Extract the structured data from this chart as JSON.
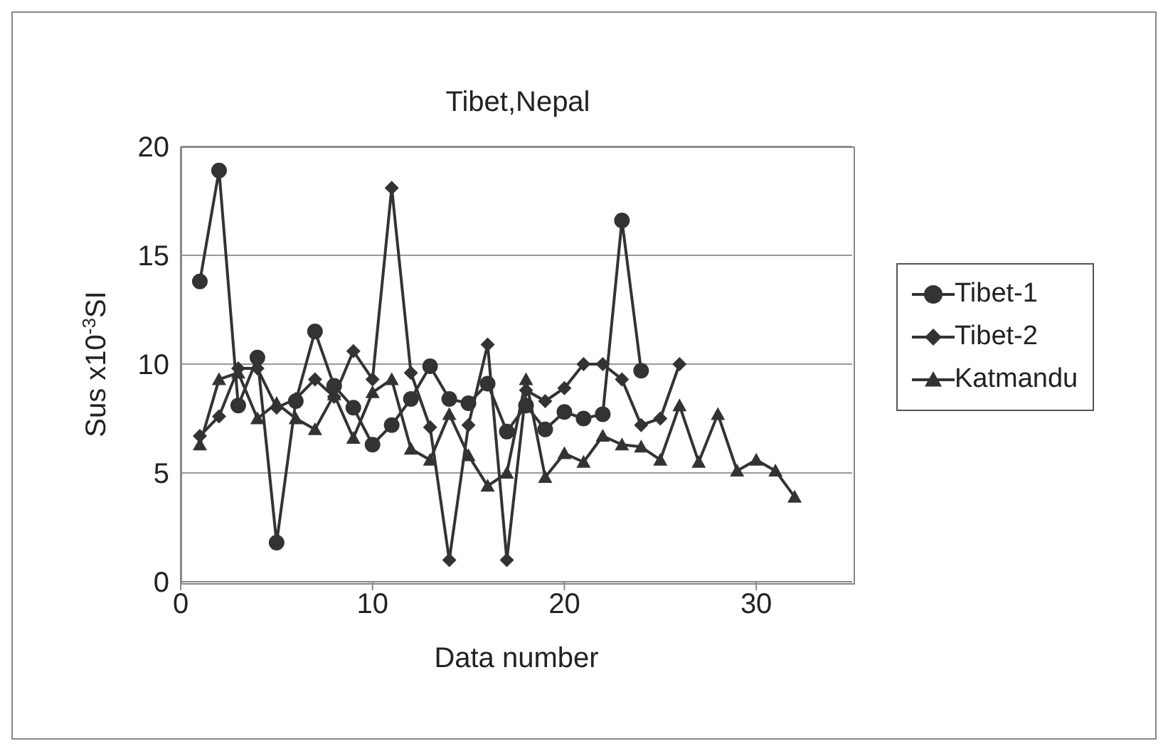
{
  "chart_data": {
    "type": "line",
    "title": "Tibet,Nepal",
    "xlabel": "Data number",
    "ylabel": "Sus x10$^{-3}$SI",
    "xlim": [
      0,
      35
    ],
    "xticks": [
      0,
      10,
      20,
      30
    ],
    "ylim": [
      0,
      20
    ],
    "yticks": [
      0,
      5,
      10,
      15,
      20
    ],
    "grid": "y",
    "legend": "right",
    "line_style": "solid",
    "series": [
      {
        "name": "Tibet-1",
        "color": "#333333",
        "marker": "circle",
        "x": [
          1,
          2,
          3,
          4,
          5,
          6,
          7,
          8,
          9,
          10,
          11,
          12,
          13,
          14,
          15,
          16,
          17,
          18,
          19,
          20,
          21,
          22,
          23,
          24
        ],
        "values": [
          13.8,
          18.9,
          8.1,
          10.3,
          1.8,
          8.3,
          11.5,
          9.0,
          8.0,
          6.3,
          7.2,
          8.4,
          9.9,
          8.4,
          8.2,
          9.1,
          6.9,
          8.1,
          7.0,
          7.8,
          7.5,
          7.7,
          16.6,
          9.7
        ]
      },
      {
        "name": "Tibet-2",
        "color": "#333333",
        "marker": "diamond",
        "x": [
          1,
          2,
          3,
          4,
          5,
          6,
          7,
          8,
          9,
          10,
          11,
          12,
          13,
          14,
          15,
          16,
          17,
          18,
          19,
          20,
          21,
          22,
          23,
          24,
          25,
          26
        ],
        "values": [
          6.7,
          7.6,
          9.8,
          9.8,
          8.0,
          8.4,
          9.3,
          8.5,
          10.6,
          9.3,
          18.1,
          9.6,
          7.1,
          1.0,
          7.2,
          10.9,
          1.0,
          8.8,
          8.3,
          8.9,
          10.0,
          10.0,
          9.3,
          7.2,
          7.5,
          10.0
        ]
      },
      {
        "name": "Katmandu",
        "color": "#333333",
        "marker": "triangle",
        "x": [
          1,
          2,
          3,
          4,
          5,
          6,
          7,
          8,
          9,
          10,
          11,
          12,
          13,
          14,
          15,
          16,
          17,
          18,
          19,
          20,
          21,
          22,
          23,
          24,
          25,
          26,
          27,
          28,
          29,
          30,
          31,
          32
        ],
        "values": [
          6.3,
          9.3,
          9.6,
          7.5,
          8.2,
          7.5,
          7.0,
          8.6,
          6.6,
          8.7,
          9.3,
          6.1,
          5.6,
          7.7,
          5.8,
          4.4,
          5.0,
          9.3,
          4.8,
          5.9,
          5.5,
          6.7,
          6.3,
          6.2,
          5.6,
          8.1,
          5.5,
          7.7,
          5.1,
          5.6,
          5.1,
          3.9
        ]
      }
    ]
  }
}
